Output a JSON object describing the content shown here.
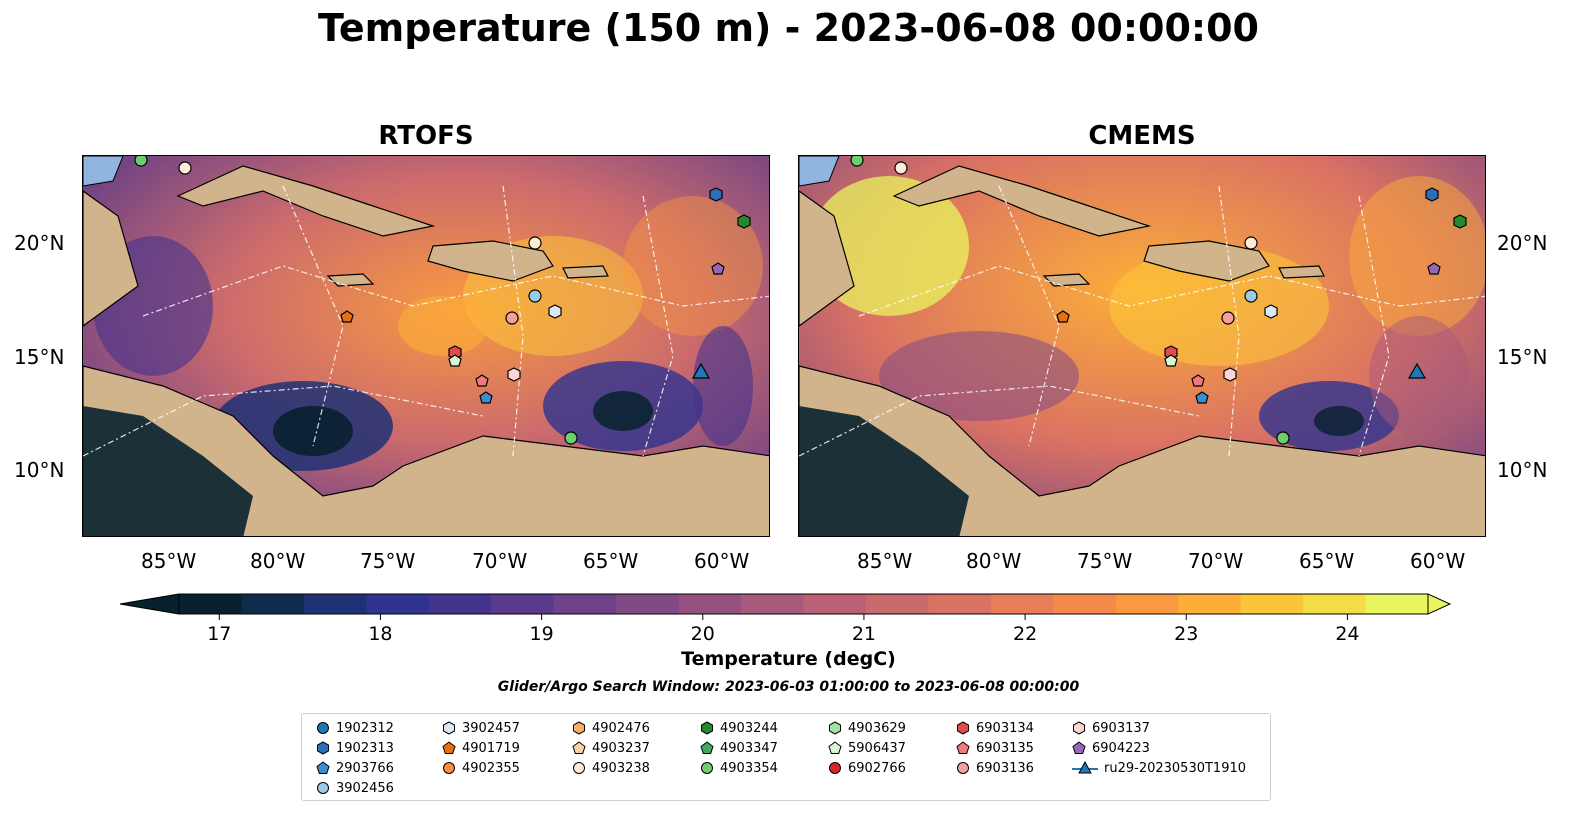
{
  "title": "Temperature (150 m) - 2023-06-08 00:00:00",
  "panels": [
    {
      "name": "RTOFS"
    },
    {
      "name": "CMEMS"
    }
  ],
  "lat_ticks": [
    "20°N",
    "15°N",
    "10°N"
  ],
  "lon_ticks": [
    "85°W",
    "80°W",
    "75°W",
    "70°W",
    "65°W",
    "60°W"
  ],
  "colorbar": {
    "label": "Temperature (degC)",
    "ticks": [
      "17",
      "18",
      "19",
      "20",
      "21",
      "22",
      "23",
      "24"
    ],
    "range": [
      16.75,
      24.5
    ],
    "colors": [
      "#07212e",
      "#0f2b4c",
      "#1e3175",
      "#2f338f",
      "#45348e",
      "#5a3a8a",
      "#6e4188",
      "#814a85",
      "#95507f",
      "#a85a7c",
      "#bb6175",
      "#cb6a6d",
      "#da7263",
      "#e87e58",
      "#f48a4a",
      "#f99a40",
      "#fcae38",
      "#fbc53a",
      "#f4dc46",
      "#e8f55e"
    ]
  },
  "search_window": "Glider/Argo Search Window: 2023-06-03 01:00:00 to 2023-06-08 00:00:00",
  "legend": [
    {
      "label": "1902312",
      "marker": "circle",
      "color": "#1f77b4"
    },
    {
      "label": "1902313",
      "marker": "hexagon",
      "color": "#2b6fb8"
    },
    {
      "label": "2903766",
      "marker": "pentagon",
      "color": "#3a8ed1"
    },
    {
      "label": "3902456",
      "marker": "circle",
      "color": "#9ecae9"
    },
    {
      "label": "3902457",
      "marker": "hexagon",
      "color": "#dbe9f6"
    },
    {
      "label": "4901719",
      "marker": "pentagon",
      "color": "#e6700e"
    },
    {
      "label": "4902355",
      "marker": "circle",
      "color": "#fd8d3c"
    },
    {
      "label": "4902476",
      "marker": "hexagon",
      "color": "#fdae6b"
    },
    {
      "label": "4903237",
      "marker": "pentagon",
      "color": "#fdd0a2"
    },
    {
      "label": "4903238",
      "marker": "circle",
      "color": "#feebd8"
    },
    {
      "label": "4903244",
      "marker": "hexagon",
      "color": "#238b2d"
    },
    {
      "label": "4903347",
      "marker": "pentagon",
      "color": "#41ab5d"
    },
    {
      "label": "4903354",
      "marker": "circle",
      "color": "#6ccf6c"
    },
    {
      "label": "4903629",
      "marker": "hexagon",
      "color": "#a1e3a1"
    },
    {
      "label": "5906437",
      "marker": "pentagon",
      "color": "#d7f7d2"
    },
    {
      "label": "6902766",
      "marker": "circle",
      "color": "#d62728"
    },
    {
      "label": "6903134",
      "marker": "hexagon",
      "color": "#e34a4a"
    },
    {
      "label": "6903135",
      "marker": "pentagon",
      "color": "#f07a7a"
    },
    {
      "label": "6903136",
      "marker": "circle",
      "color": "#f4a0a0"
    },
    {
      "label": "6903137",
      "marker": "hexagon",
      "color": "#fbd4d4"
    },
    {
      "label": "6904223",
      "marker": "pentagon",
      "color": "#9467bd"
    },
    {
      "label": "ru29-20230530T1910",
      "marker": "triangle-line",
      "color": "#1f77b4"
    }
  ],
  "colors": {
    "land": "#d2b48c",
    "shelf": "#8fb5e0",
    "coast": "#000000"
  }
}
